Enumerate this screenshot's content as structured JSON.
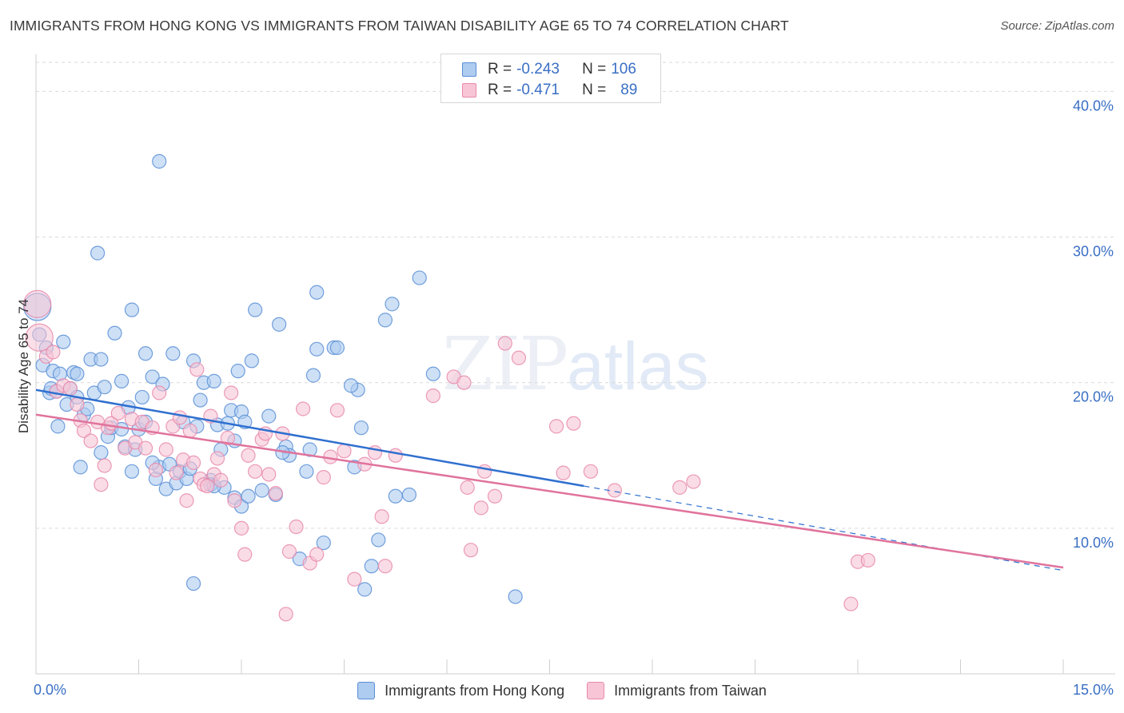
{
  "title": "IMMIGRANTS FROM HONG KONG VS IMMIGRANTS FROM TAIWAN DISABILITY AGE 65 TO 74 CORRELATION CHART",
  "source": "Source: ZipAtlas.com",
  "watermark": {
    "zip": "ZIP",
    "atlas": "atlas"
  },
  "legend": {
    "rows": [
      {
        "r_label": "R =",
        "r_value": "-0.243",
        "n_label": "N =",
        "n_value": "106"
      },
      {
        "r_label": "R =",
        "r_value": "-0.471",
        "n_label": "N =",
        "n_value": "89"
      }
    ]
  },
  "colors": {
    "hk_fill": "#aecbf0",
    "hk_stroke": "#5b8fd6",
    "hk_line": "#2f6fcf",
    "tw_fill": "#f7c5d6",
    "tw_stroke": "#e88aab",
    "tw_line": "#e0739c",
    "grid": "#d9d9d9",
    "axis_text": "#3a6fc4"
  },
  "chart_data": {
    "type": "scatter",
    "title": "IMMIGRANTS FROM HONG KONG VS IMMIGRANTS FROM TAIWAN DISABILITY AGE 65 TO 74 CORRELATION CHART",
    "xlabel": "",
    "ylabel": "Disability Age 65 to 74",
    "xlim": [
      0,
      15
    ],
    "ylim": [
      0,
      42
    ],
    "x_tick_labels": [
      "0.0%",
      "15.0%"
    ],
    "y_tick_labels": [
      "10.0%",
      "20.0%",
      "30.0%",
      "40.0%"
    ],
    "y_ticks": [
      10,
      20,
      30,
      40
    ],
    "grid": true,
    "legend_position": "top-center",
    "series": [
      {
        "name": "Immigrants from Hong Kong",
        "trend": {
          "x": [
            0,
            8
          ],
          "y": [
            19.5,
            12.9
          ],
          "dashed_to": [
            15,
            7.1
          ]
        },
        "points": [
          [
            0.02,
            25.2
          ],
          [
            0.05,
            23.3
          ],
          [
            0.1,
            21.2
          ],
          [
            0.15,
            22.4
          ],
          [
            0.2,
            19.3
          ],
          [
            0.22,
            19.6
          ],
          [
            0.25,
            20.8
          ],
          [
            0.3,
            19.4
          ],
          [
            0.32,
            17.0
          ],
          [
            0.35,
            20.6
          ],
          [
            0.4,
            22.8
          ],
          [
            0.45,
            18.5
          ],
          [
            0.5,
            19.6
          ],
          [
            0.55,
            20.7
          ],
          [
            0.6,
            20.6
          ],
          [
            0.65,
            14.2
          ],
          [
            0.7,
            17.8
          ],
          [
            0.75,
            18.2
          ],
          [
            0.8,
            21.6
          ],
          [
            0.85,
            19.3
          ],
          [
            0.95,
            21.6
          ],
          [
            0.95,
            15.2
          ],
          [
            1.0,
            19.7
          ],
          [
            1.05,
            16.3
          ],
          [
            1.1,
            16.9
          ],
          [
            1.15,
            23.4
          ],
          [
            1.25,
            20.1
          ],
          [
            1.25,
            16.8
          ],
          [
            1.3,
            15.6
          ],
          [
            1.35,
            18.3
          ],
          [
            1.4,
            25.0
          ],
          [
            1.45,
            15.4
          ],
          [
            1.5,
            16.8
          ],
          [
            1.55,
            19.0
          ],
          [
            1.6,
            17.3
          ],
          [
            1.6,
            22.0
          ],
          [
            1.7,
            20.4
          ],
          [
            1.75,
            13.4
          ],
          [
            1.8,
            14.2
          ],
          [
            1.85,
            19.9
          ],
          [
            1.9,
            12.7
          ],
          [
            1.95,
            14.4
          ],
          [
            2.0,
            22.0
          ],
          [
            2.05,
            13.1
          ],
          [
            2.1,
            13.9
          ],
          [
            2.15,
            17.3
          ],
          [
            2.2,
            13.4
          ],
          [
            2.25,
            14.1
          ],
          [
            2.3,
            21.5
          ],
          [
            2.35,
            17.0
          ],
          [
            2.4,
            18.8
          ],
          [
            2.45,
            20.0
          ],
          [
            2.55,
            13.3
          ],
          [
            2.6,
            20.1
          ],
          [
            2.65,
            17.1
          ],
          [
            2.7,
            15.4
          ],
          [
            2.75,
            12.8
          ],
          [
            2.8,
            17.2
          ],
          [
            2.85,
            18.1
          ],
          [
            2.9,
            12.1
          ],
          [
            2.95,
            20.8
          ],
          [
            3.0,
            11.5
          ],
          [
            3.0,
            18.0
          ],
          [
            3.1,
            12.2
          ],
          [
            3.15,
            21.5
          ],
          [
            3.2,
            25.0
          ],
          [
            3.3,
            12.6
          ],
          [
            3.4,
            17.7
          ],
          [
            3.5,
            12.3
          ],
          [
            3.55,
            24.0
          ],
          [
            3.65,
            15.6
          ],
          [
            3.7,
            15.0
          ],
          [
            3.85,
            7.9
          ],
          [
            3.95,
            13.9
          ],
          [
            4.05,
            20.5
          ],
          [
            4.1,
            26.2
          ],
          [
            4.2,
            9.0
          ],
          [
            4.35,
            22.4
          ],
          [
            4.4,
            22.4
          ],
          [
            4.65,
            14.2
          ],
          [
            4.7,
            19.5
          ],
          [
            4.75,
            16.9
          ],
          [
            4.8,
            5.8
          ],
          [
            4.9,
            7.4
          ],
          [
            4.1,
            22.3
          ],
          [
            5.0,
            9.2
          ],
          [
            5.1,
            24.3
          ],
          [
            5.2,
            25.4
          ],
          [
            5.25,
            12.2
          ],
          [
            5.45,
            12.3
          ],
          [
            5.6,
            27.2
          ],
          [
            5.8,
            20.6
          ],
          [
            7.0,
            5.3
          ],
          [
            1.8,
            35.2
          ],
          [
            2.3,
            6.2
          ],
          [
            0.9,
            28.9
          ],
          [
            2.55,
            13.0
          ],
          [
            3.05,
            17.3
          ],
          [
            2.9,
            16.0
          ],
          [
            4.0,
            15.4
          ],
          [
            3.6,
            15.2
          ],
          [
            1.4,
            13.9
          ],
          [
            2.6,
            12.9
          ],
          [
            4.6,
            19.8
          ],
          [
            1.7,
            14.5
          ],
          [
            0.6,
            19.0
          ]
        ]
      },
      {
        "name": "Immigrants from Taiwan",
        "trend": {
          "x": [
            0,
            15
          ],
          "y": [
            17.8,
            7.3
          ]
        },
        "points": [
          [
            0.02,
            25.4
          ],
          [
            0.05,
            23.1
          ],
          [
            0.15,
            21.8
          ],
          [
            0.25,
            22.1
          ],
          [
            0.3,
            19.4
          ],
          [
            0.4,
            19.8
          ],
          [
            0.5,
            19.6
          ],
          [
            0.6,
            18.5
          ],
          [
            0.65,
            17.4
          ],
          [
            0.7,
            16.7
          ],
          [
            0.8,
            16.0
          ],
          [
            0.9,
            17.3
          ],
          [
            0.95,
            13.0
          ],
          [
            1.0,
            14.3
          ],
          [
            1.05,
            16.9
          ],
          [
            1.1,
            17.2
          ],
          [
            1.2,
            17.9
          ],
          [
            1.3,
            15.5
          ],
          [
            1.4,
            17.5
          ],
          [
            1.45,
            15.9
          ],
          [
            1.55,
            17.3
          ],
          [
            1.6,
            15.5
          ],
          [
            1.7,
            16.9
          ],
          [
            1.75,
            14.0
          ],
          [
            1.8,
            19.3
          ],
          [
            1.9,
            15.4
          ],
          [
            2.0,
            17.0
          ],
          [
            2.05,
            13.8
          ],
          [
            2.1,
            17.6
          ],
          [
            2.15,
            14.7
          ],
          [
            2.2,
            11.9
          ],
          [
            2.25,
            16.7
          ],
          [
            2.3,
            14.5
          ],
          [
            2.35,
            20.9
          ],
          [
            2.4,
            13.4
          ],
          [
            2.45,
            13.0
          ],
          [
            2.5,
            12.9
          ],
          [
            2.55,
            17.7
          ],
          [
            2.6,
            13.7
          ],
          [
            2.65,
            14.8
          ],
          [
            2.7,
            13.3
          ],
          [
            2.8,
            16.2
          ],
          [
            2.85,
            19.3
          ],
          [
            2.9,
            11.9
          ],
          [
            3.0,
            10.0
          ],
          [
            3.05,
            8.2
          ],
          [
            3.1,
            15.0
          ],
          [
            3.2,
            13.9
          ],
          [
            3.3,
            16.1
          ],
          [
            3.35,
            16.5
          ],
          [
            3.4,
            13.7
          ],
          [
            3.5,
            12.4
          ],
          [
            3.6,
            16.5
          ],
          [
            3.65,
            4.1
          ],
          [
            3.7,
            8.4
          ],
          [
            3.8,
            10.1
          ],
          [
            3.9,
            18.2
          ],
          [
            4.0,
            7.6
          ],
          [
            4.1,
            8.2
          ],
          [
            4.2,
            13.5
          ],
          [
            4.3,
            14.9
          ],
          [
            4.4,
            18.1
          ],
          [
            4.5,
            15.3
          ],
          [
            4.65,
            6.5
          ],
          [
            4.8,
            14.4
          ],
          [
            4.95,
            15.2
          ],
          [
            5.1,
            7.4
          ],
          [
            5.25,
            15.0
          ],
          [
            5.8,
            19.1
          ],
          [
            6.1,
            20.4
          ],
          [
            6.25,
            20.0
          ],
          [
            6.3,
            12.8
          ],
          [
            6.5,
            11.4
          ],
          [
            6.55,
            13.9
          ],
          [
            6.7,
            12.2
          ],
          [
            6.85,
            22.7
          ],
          [
            7.05,
            21.7
          ],
          [
            6.35,
            8.5
          ],
          [
            7.6,
            17.0
          ],
          [
            7.7,
            13.8
          ],
          [
            7.85,
            17.2
          ],
          [
            8.1,
            13.9
          ],
          [
            8.45,
            12.6
          ],
          [
            9.4,
            12.8
          ],
          [
            9.6,
            13.2
          ],
          [
            12.0,
            7.7
          ],
          [
            12.15,
            7.8
          ],
          [
            11.9,
            4.8
          ],
          [
            5.05,
            10.8
          ]
        ]
      }
    ]
  }
}
